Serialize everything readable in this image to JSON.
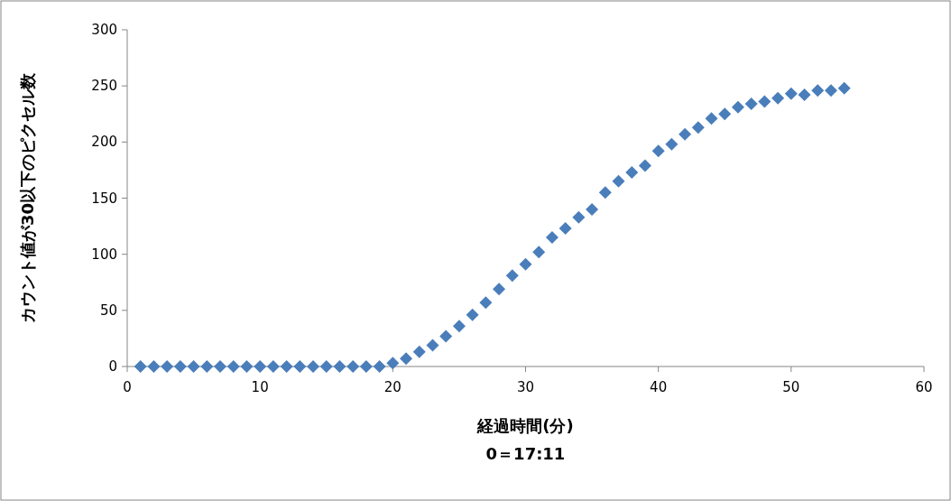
{
  "chart_data": {
    "type": "scatter",
    "xlabel": "経過時間(分)",
    "ylabel": "カウント値が30以下のピクセル数",
    "annotations": [
      "0＝17:11"
    ],
    "x": [
      1,
      2,
      3,
      4,
      5,
      6,
      7,
      8,
      9,
      10,
      11,
      12,
      13,
      14,
      15,
      16,
      17,
      18,
      19,
      20,
      21,
      22,
      23,
      24,
      25,
      26,
      27,
      28,
      29,
      30,
      31,
      32,
      33,
      34,
      35,
      36,
      37,
      38,
      39,
      40,
      41,
      42,
      43,
      44,
      45,
      46,
      47,
      48,
      49,
      50,
      51,
      52,
      53,
      54
    ],
    "series": [
      {
        "color": "#4a7ebb",
        "values": [
          0,
          0,
          0,
          0,
          0,
          0,
          0,
          0,
          0,
          0,
          0,
          0,
          0,
          0,
          0,
          0,
          0,
          0,
          0,
          3,
          7,
          13,
          19,
          27,
          36,
          46,
          57,
          69,
          81,
          91,
          102,
          115,
          123,
          133,
          140,
          155,
          165,
          173,
          179,
          192,
          198,
          207,
          213,
          221,
          225,
          231,
          234,
          236,
          239,
          243,
          242,
          246,
          246,
          248
        ]
      }
    ],
    "marker": "diamond",
    "xlim": [
      0,
      60
    ],
    "xticks": [
      0,
      10,
      20,
      30,
      40,
      50,
      60
    ],
    "ylim": [
      0,
      300
    ],
    "yticks": [
      0,
      50,
      100,
      150,
      200,
      250,
      300
    ],
    "grid": false
  }
}
